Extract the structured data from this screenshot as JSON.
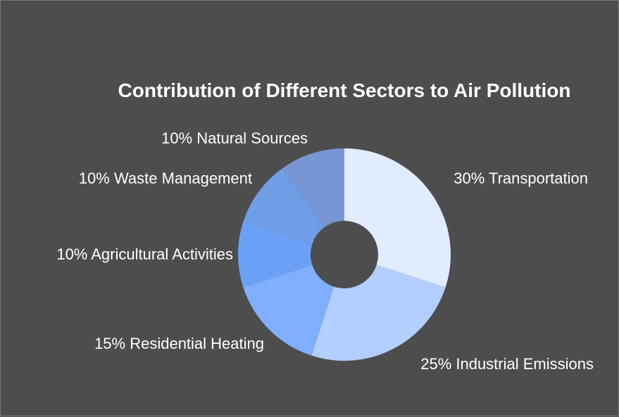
{
  "chart_data": {
    "type": "pie",
    "variant": "donut",
    "title": "Contribution of Different Sectors to Air Pollution",
    "categories": [
      "Transportation",
      "Industrial Emissions",
      "Residential Heating",
      "Agricultural Activities",
      "Waste Management",
      "Natural Sources"
    ],
    "values": [
      30,
      25,
      15,
      10,
      10,
      10
    ],
    "labels": [
      "30% Transportation",
      "25% Industrial Emissions",
      "15% Residential Heating",
      "10% Agricultural Activities",
      "10% Waste Management",
      "10% Natural Sources"
    ],
    "colors": [
      "#e1ecff",
      "#b3cfff",
      "#80afff",
      "#6aa1f7",
      "#6f9de6",
      "#7896d3"
    ],
    "background": "#4d4d4d",
    "legend": "none"
  }
}
